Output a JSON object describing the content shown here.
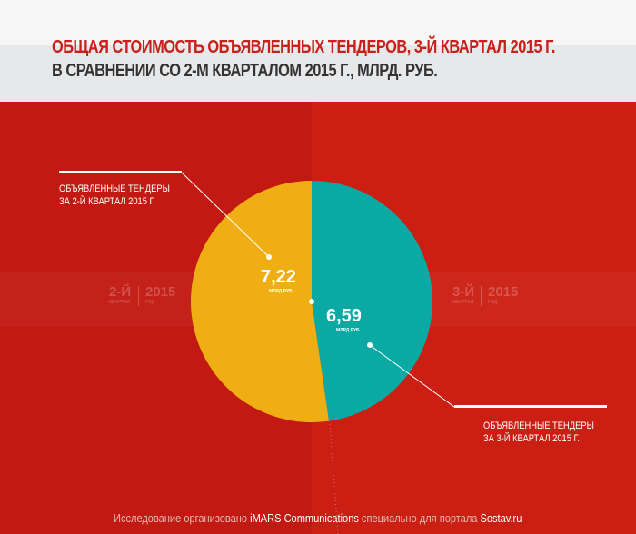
{
  "title": {
    "line1": "ОБЩАЯ СТОИМОСТЬ ОБЪЯВЛЕННЫХ ТЕНДЕРОВ, 3-Й КВАРТАЛ 2015 Г.",
    "line2": "В СРАВНЕНИИ СО 2-М КВАРТАЛОМ 2015 Г., МЛРД. РУБ."
  },
  "chart_data": {
    "type": "pie",
    "title": "ОБЩАЯ СТОИМОСТЬ ОБЪЯВЛЕННЫХ ТЕНДЕРОВ, 3-Й КВАРТАЛ 2015 Г. В СРАВНЕНИИ СО 2-М КВАРТАЛОМ 2015 Г., МЛРД. РУБ.",
    "slices": [
      {
        "label": "ОБЪЯВЛЕННЫЕ ТЕНДЕРЫ ЗА 3-Й КВАРТАЛ 2015 Г.",
        "value": 6.59,
        "value_text": "6,59",
        "unit": "МЛРД РУБ.",
        "color": "#0aa9a3"
      },
      {
        "label": "ОБЪЯВЛЕННЫЕ ТЕНДЕРЫ ЗА 2-Й КВАРТАЛ 2015 Г.",
        "value": 7.22,
        "value_text": "7,22",
        "unit": "МЛРД РУБ.",
        "color": "#efaf14"
      }
    ]
  },
  "labels": {
    "left": {
      "line1": "ОБЪЯВЛЕННЫЕ ТЕНДЕРЫ",
      "line2": "ЗА 2-Й КВАРТАЛ 2015 Г."
    },
    "right": {
      "line1": "ОБЪЯВЛЕННЫЕ ТЕНДЕРЫ",
      "line2": "ЗА 3-Й КВАРТАЛ 2015 Г."
    }
  },
  "periods": {
    "left": {
      "quarter": "2-Й",
      "quarter_sub": "КВАРТАЛ",
      "year": "2015",
      "year_sub": "ГОД"
    },
    "right": {
      "quarter": "3-Й",
      "quarter_sub": "КВАРТАЛ",
      "year": "2015",
      "year_sub": "ГОД"
    }
  },
  "footer": {
    "p1": "Исследование организовано ",
    "b1": "iMARS Communications",
    "p2": " специально для портала ",
    "b2": "Sostav.ru"
  }
}
